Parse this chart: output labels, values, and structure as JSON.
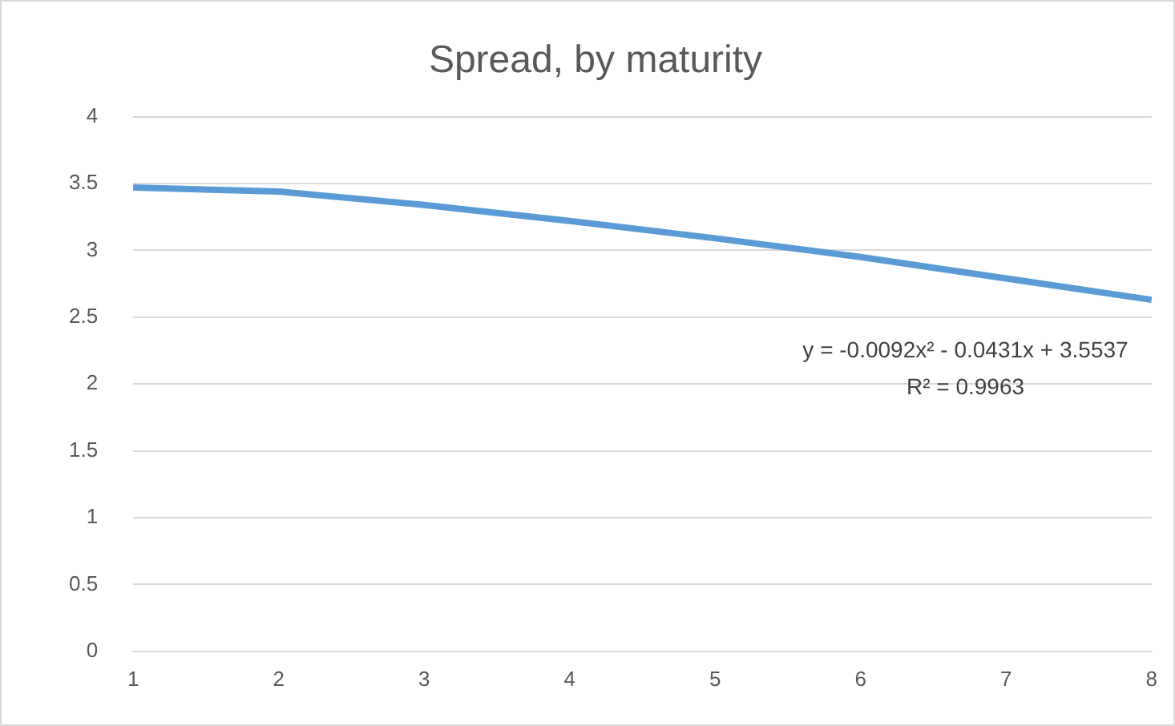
{
  "chart_data": {
    "type": "line",
    "title": "Spread, by maturity",
    "categories": [
      "1",
      "2",
      "3",
      "4",
      "5",
      "6",
      "7",
      "8"
    ],
    "series": [
      {
        "color": "#5b9bd5",
        "values": [
          3.47,
          3.44,
          3.34,
          3.22,
          3.09,
          2.95,
          2.79,
          2.63
        ]
      }
    ],
    "ylim": [
      0,
      4
    ],
    "yticks": [
      0,
      0.5,
      1,
      1.5,
      2,
      2.5,
      3,
      3.5,
      4
    ],
    "grid": "y",
    "legend": false,
    "marker": "none",
    "line_style": "solid",
    "annotations": [
      "y = -0.0092x² - 0.0431x + 3.5537",
      "R² = 0.9963"
    ]
  }
}
